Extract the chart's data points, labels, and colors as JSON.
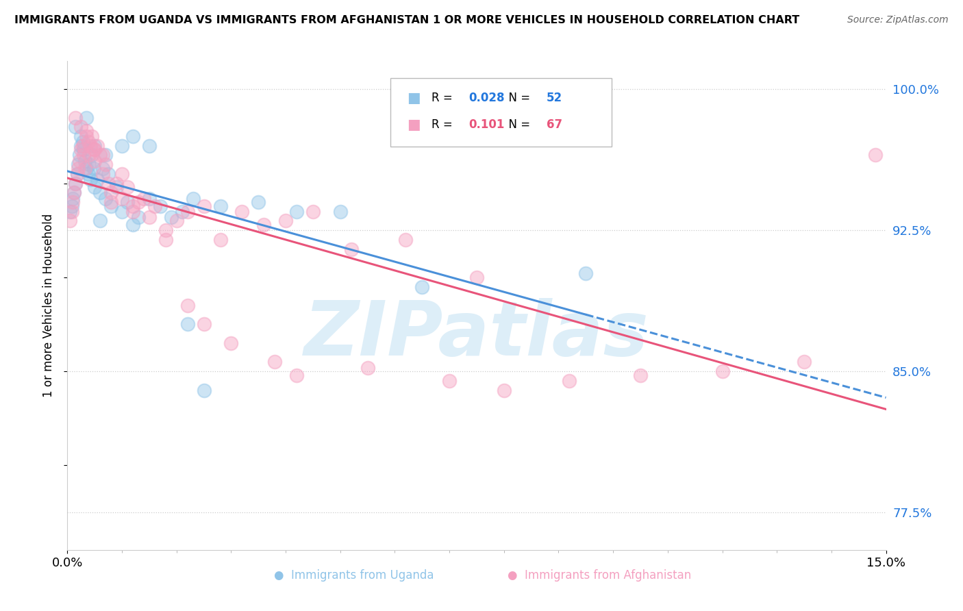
{
  "title": "IMMIGRANTS FROM UGANDA VS IMMIGRANTS FROM AFGHANISTAN 1 OR MORE VEHICLES IN HOUSEHOLD CORRELATION CHART",
  "source": "Source: ZipAtlas.com",
  "xmin": 0.0,
  "xmax": 15.0,
  "ymin": 75.5,
  "ymax": 101.5,
  "ylabel": "1 or more Vehicles in Household",
  "legend_R1_val": "0.028",
  "legend_N1_val": "52",
  "legend_R2_val": "0.101",
  "legend_N2_val": "67",
  "color_uganda": "#90c4e8",
  "color_afghanistan": "#f4a0c0",
  "color_uganda_line": "#4a90d9",
  "color_afghanistan_line": "#e8547a",
  "watermark": "ZIPatlas",
  "watermark_color": "#ddeef8",
  "legend_label1": "Immigrants from Uganda",
  "legend_label2": "Immigrants from Afghanistan",
  "uganda_x": [
    0.05,
    0.08,
    0.1,
    0.12,
    0.15,
    0.18,
    0.2,
    0.22,
    0.25,
    0.28,
    0.3,
    0.32,
    0.35,
    0.38,
    0.4,
    0.42,
    0.45,
    0.48,
    0.5,
    0.55,
    0.6,
    0.65,
    0.7,
    0.75,
    0.8,
    0.9,
    1.0,
    1.1,
    1.2,
    1.3,
    1.5,
    1.7,
    1.9,
    2.1,
    2.3,
    2.8,
    3.5,
    4.2,
    5.0,
    6.5,
    9.5,
    0.15,
    0.25,
    0.35,
    0.5,
    0.7,
    1.0,
    1.2,
    1.5,
    0.6,
    2.5,
    2.2
  ],
  "uganda_y": [
    93.5,
    93.8,
    94.2,
    94.5,
    95.0,
    95.5,
    96.0,
    96.5,
    97.0,
    97.2,
    96.8,
    96.2,
    95.8,
    95.5,
    96.0,
    95.2,
    96.5,
    95.8,
    94.8,
    95.2,
    94.5,
    95.8,
    94.2,
    95.5,
    93.8,
    94.8,
    93.5,
    94.0,
    92.8,
    93.2,
    94.2,
    93.8,
    93.2,
    93.5,
    94.2,
    93.8,
    94.0,
    93.5,
    93.5,
    89.5,
    90.2,
    98.0,
    97.5,
    98.5,
    97.0,
    96.5,
    97.0,
    97.5,
    97.0,
    93.0,
    84.0,
    87.5
  ],
  "afghanistan_x": [
    0.05,
    0.08,
    0.1,
    0.12,
    0.15,
    0.18,
    0.2,
    0.22,
    0.25,
    0.28,
    0.3,
    0.32,
    0.35,
    0.38,
    0.4,
    0.42,
    0.45,
    0.48,
    0.5,
    0.55,
    0.6,
    0.65,
    0.7,
    0.75,
    0.8,
    0.9,
    1.0,
    1.1,
    1.2,
    1.3,
    1.4,
    1.6,
    1.8,
    2.0,
    2.2,
    2.5,
    2.8,
    3.2,
    3.6,
    4.0,
    4.5,
    5.2,
    6.2,
    7.5,
    0.15,
    0.25,
    0.35,
    0.5,
    0.65,
    0.8,
    1.0,
    1.2,
    1.5,
    1.8,
    2.2,
    2.5,
    3.0,
    3.8,
    4.2,
    5.5,
    7.0,
    8.0,
    9.2,
    10.5,
    12.0,
    13.5,
    14.8
  ],
  "afghanistan_y": [
    93.0,
    93.5,
    94.0,
    94.5,
    95.0,
    95.5,
    95.8,
    96.2,
    96.8,
    97.0,
    96.5,
    95.8,
    97.5,
    97.2,
    96.5,
    97.0,
    97.5,
    96.8,
    96.2,
    97.0,
    96.5,
    95.5,
    96.0,
    95.0,
    94.5,
    95.0,
    94.2,
    94.8,
    93.5,
    94.0,
    94.2,
    93.8,
    92.5,
    93.0,
    93.5,
    93.8,
    92.0,
    93.5,
    92.8,
    93.0,
    93.5,
    91.5,
    92.0,
    90.0,
    98.5,
    98.0,
    97.8,
    96.8,
    96.5,
    94.0,
    95.5,
    93.8,
    93.2,
    92.0,
    88.5,
    87.5,
    86.5,
    85.5,
    84.8,
    85.2,
    84.5,
    84.0,
    84.5,
    84.8,
    85.0,
    85.5,
    96.5
  ]
}
